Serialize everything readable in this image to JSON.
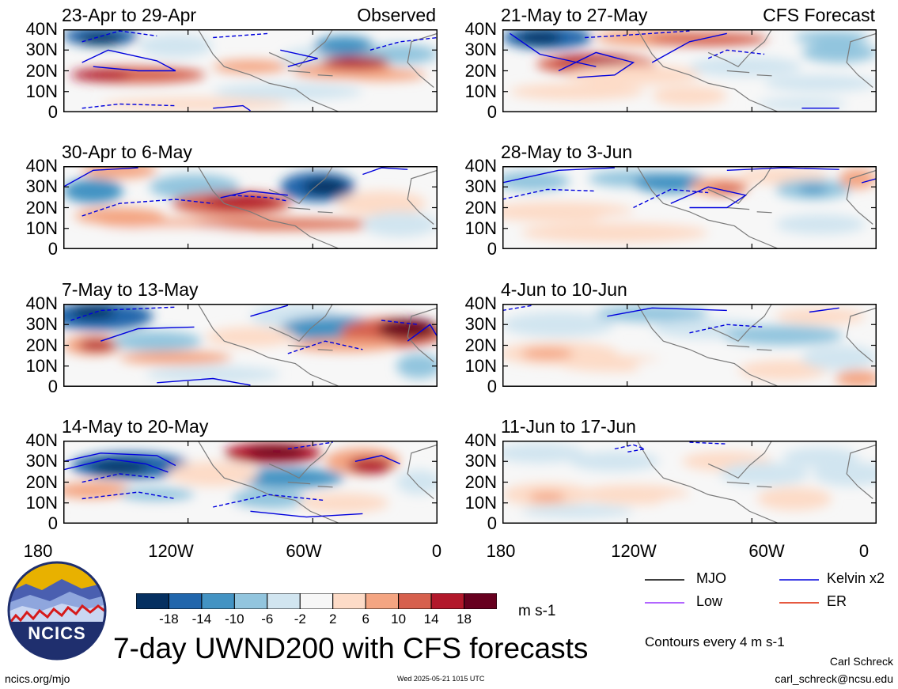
{
  "chart_data": {
    "type": "heatmap",
    "variable": "7-day UWND200 with CFS forecasts",
    "units": "m s-1",
    "xlim": [
      "180",
      "0"
    ],
    "ylim": [
      0,
      40
    ],
    "xticks": [
      "180",
      "120W",
      "60W",
      "0"
    ],
    "yticks": [
      "40N",
      "30N",
      "20N",
      "10N",
      "0"
    ],
    "colorbar_levels": [
      "-18",
      "-14",
      "-10",
      "-6",
      "-2",
      "2",
      "6",
      "10",
      "14",
      "18"
    ],
    "colorbar_colors": [
      "#053061",
      "#2166ac",
      "#4393c3",
      "#92c5de",
      "#d1e5f0",
      "#f7f7f7",
      "#fddbc7",
      "#f4a582",
      "#d6604d",
      "#b2182b",
      "#67001f"
    ],
    "contour_interval_note": "Contours every 4 m s-1",
    "panels": [
      {
        "title": "23-Apr to 29-Apr",
        "tag": "Observed"
      },
      {
        "title": "30-Apr to 6-May",
        "tag": ""
      },
      {
        "title": "7-May to 13-May",
        "tag": ""
      },
      {
        "title": "14-May to 20-May",
        "tag": ""
      },
      {
        "title": "21-May to 27-May",
        "tag": "CFS Forecast"
      },
      {
        "title": "28-May to 3-Jun",
        "tag": ""
      },
      {
        "title": "4-Jun to 10-Jun",
        "tag": ""
      },
      {
        "title": "11-Jun to 17-Jun",
        "tag": ""
      }
    ],
    "legend": [
      {
        "label": "MJO",
        "color": "#000000"
      },
      {
        "label": "Kelvin x2",
        "color": "#0000dd"
      },
      {
        "label": "Low",
        "color": "#9933ff"
      },
      {
        "label": "ER",
        "color": "#dd2200"
      }
    ]
  },
  "footer": {
    "title": "7-day UWND200 with CFS forecasts",
    "logo_text": "NCICS",
    "site": "ncics.org/mjo",
    "timestamp": "Wed 2025-05-21 1015 UTC",
    "author": "Carl Schreck",
    "email": "carl_schreck@ncsu.edu"
  }
}
